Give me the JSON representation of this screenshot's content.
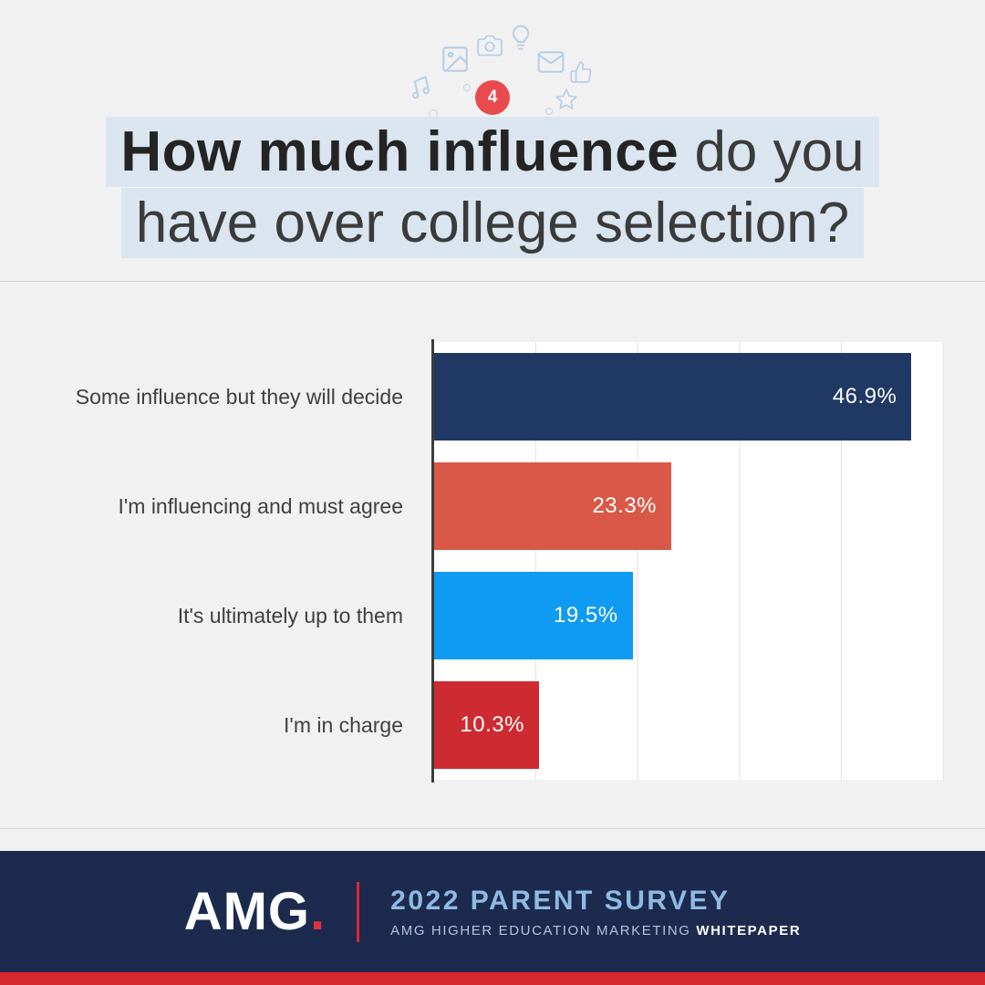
{
  "header": {
    "badge": "4",
    "title_bold": "How much influence",
    "title_rest": " do you",
    "title_line2": "have over college selection?"
  },
  "chart_data": {
    "type": "bar",
    "orientation": "horizontal",
    "title": "How much influence do you have over college selection?",
    "categories": [
      "Some influence but they will decide",
      "I'm influencing and must agree",
      "It's ultimately up to them",
      "I'm in charge"
    ],
    "values": [
      46.9,
      23.3,
      19.5,
      10.3
    ],
    "value_labels": [
      "46.9%",
      "23.3%",
      "19.5%",
      "10.3%"
    ],
    "bar_colors": [
      "#203864",
      "#d95847",
      "#0e9bf1",
      "#cd2b31"
    ],
    "xlim": [
      0,
      50
    ],
    "gridline_interval": 10,
    "grid": true,
    "legend": "none"
  },
  "footer": {
    "logo_text": "AMG",
    "logo_dot": ".",
    "title": "2022 PARENT SURVEY",
    "subtitle": "AMG HIGHER EDUCATION MARKETING",
    "subtitle_bold": "WHITEPAPER"
  },
  "colors": {
    "accent_red": "#e84a4e",
    "footer_navy": "#1c2a4e",
    "footer_stripe_red": "#d7282f",
    "title_highlight": "#dbe5f0",
    "footer_title_blue": "#8fbbe3"
  }
}
